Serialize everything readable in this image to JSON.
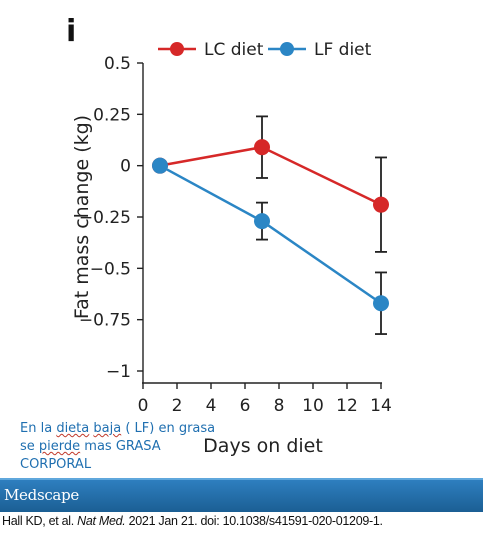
{
  "panel_label": "i",
  "chart_data": {
    "type": "line",
    "title": "",
    "xlabel": "Days on diet",
    "ylabel": "Fat mass change (kg)",
    "xlim": [
      0,
      14
    ],
    "ylim": [
      -1,
      0.5
    ],
    "x_ticks": [
      0,
      2,
      4,
      6,
      8,
      10,
      12,
      14
    ],
    "y_ticks": [
      -1,
      -0.75,
      -0.5,
      -0.25,
      0,
      0.25,
      0.5
    ],
    "y_tick_labels": [
      "−1",
      "−0.75",
      "−0.5",
      "−0.25",
      "0",
      "0.25",
      "0.5"
    ],
    "grid": false,
    "legend_position": "top",
    "series": [
      {
        "name": "LC diet",
        "color": "#d62828",
        "x": [
          1,
          7,
          14
        ],
        "y": [
          0,
          0.09,
          -0.19
        ],
        "err": [
          0,
          0.15,
          0.23
        ]
      },
      {
        "name": "LF diet",
        "color": "#2b86c5",
        "x": [
          1,
          7,
          14
        ],
        "y": [
          0,
          -0.27,
          -0.67
        ],
        "err": [
          0,
          0.09,
          0.15
        ]
      }
    ]
  },
  "annotation": {
    "w1": "En la",
    "w2": "dieta",
    "w3": "baja",
    "w4": "( LF) en grasa se",
    "w5": "pierde",
    "w6": "mas GRASA CORPORAL"
  },
  "footer": {
    "brand": "Medscape",
    "citation_authors": "Hall KD, et al.",
    "citation_journal": "Nat Med.",
    "citation_rest": "2021 Jan 21. doi: 10.1038/s41591-020-01209-1."
  }
}
